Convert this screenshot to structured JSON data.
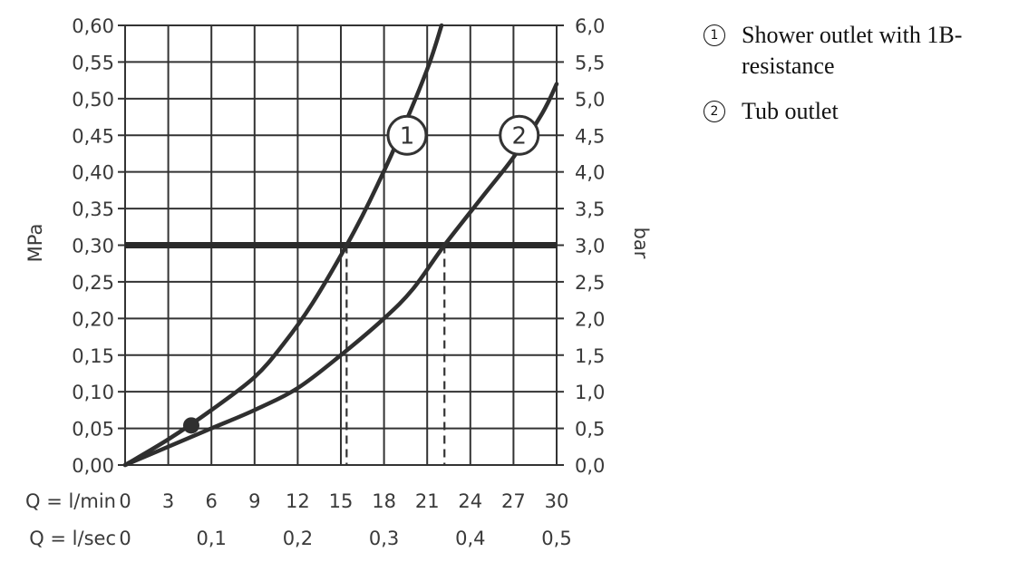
{
  "chart_data": {
    "type": "line",
    "xlim": [
      0,
      30
    ],
    "ylim": [
      0,
      0.6
    ],
    "grid": true,
    "y_left_label": "MPa",
    "y_right_label": "bar",
    "y_left_ticks": [
      "0,00",
      "0,05",
      "0,10",
      "0,15",
      "0,20",
      "0,25",
      "0,30",
      "0,35",
      "0,40",
      "0,45",
      "0,50",
      "0,55",
      "0,60"
    ],
    "y_right_ticks": [
      "0,0",
      "0,5",
      "1,0",
      "1,5",
      "2,0",
      "2,5",
      "3,0",
      "3,5",
      "4,0",
      "4,5",
      "5,0",
      "5,5",
      "6,0"
    ],
    "x_ticks_lmin": [
      "0",
      "3",
      "6",
      "9",
      "12",
      "15",
      "18",
      "21",
      "24",
      "27",
      "30"
    ],
    "x_ticks_lsec": [
      {
        "label": "0",
        "x": 0
      },
      {
        "label": "0,1",
        "x": 6
      },
      {
        "label": "0,2",
        "x": 12
      },
      {
        "label": "0,3",
        "x": 18
      },
      {
        "label": "0,4",
        "x": 24
      },
      {
        "label": "0,5",
        "x": 30
      }
    ],
    "x_row1_label": "Q = l/min",
    "x_row2_label": "Q = l/sec",
    "reference_line": {
      "y": 0.3
    },
    "series": [
      {
        "name": "1",
        "marker": "1",
        "x": [
          0,
          3,
          6,
          9,
          11,
          13,
          15.4,
          17,
          19,
          21,
          22
        ],
        "y": [
          0,
          0.035,
          0.075,
          0.12,
          0.165,
          0.22,
          0.3,
          0.36,
          0.445,
          0.54,
          0.6
        ]
      },
      {
        "name": "2",
        "marker": "2",
        "x": [
          0,
          3,
          6,
          9,
          12,
          15,
          18,
          20,
          22.2,
          25,
          27,
          29,
          30
        ],
        "y": [
          0,
          0.025,
          0.05,
          0.075,
          0.105,
          0.15,
          0.2,
          0.24,
          0.3,
          0.37,
          0.42,
          0.48,
          0.52
        ]
      }
    ],
    "dropdowns": [
      {
        "x": 15.4,
        "y": 0.3
      },
      {
        "x": 22.2,
        "y": 0.3
      }
    ],
    "marked_point": {
      "x": 4.6,
      "y": 0.054
    },
    "series_markers": [
      {
        "label": "1",
        "x": 19.6,
        "y": 0.45
      },
      {
        "label": "2",
        "x": 27.4,
        "y": 0.45
      }
    ]
  },
  "legend": {
    "items": [
      {
        "num": "1",
        "text": "Shower outlet with 1B-resistance"
      },
      {
        "num": "2",
        "text": "Tub outlet"
      }
    ]
  }
}
